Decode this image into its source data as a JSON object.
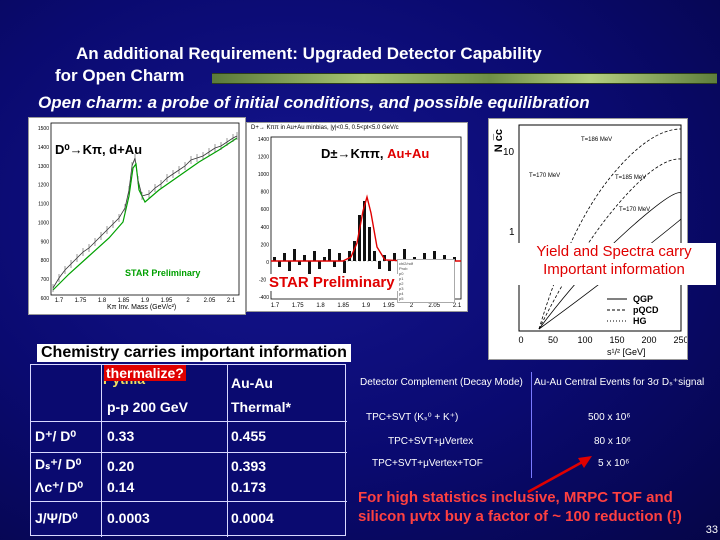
{
  "slide": {
    "title_line1": "An additional Requirement: Upgraded Detector Capability",
    "title_line2": "for Open Charm",
    "subtitle": "Open charm: a probe of  initial conditions, and possible equilibration"
  },
  "panel_dau": {
    "label": "D⁰→Kπ, d+Au",
    "star": "STAR Preliminary",
    "xaxis": "Kπ Inv. Mass (GeV/c²)",
    "yticks": [
      "1500",
      "1400",
      "1300",
      "1200",
      "1100",
      "1000",
      "900",
      "800",
      "700",
      "600"
    ],
    "xticks": [
      "1.7",
      "1.75",
      "1.8",
      "1.85",
      "1.9",
      "1.95",
      "2",
      "2.05",
      "2.1"
    ]
  },
  "panel_auau": {
    "header": "D±→ Kππ, Au+Au",
    "label": "D±→Kππ,",
    "label_red": "Au+Au",
    "star": "STAR Preliminary",
    "topline": "D+→ Kππ in Au+Au minbias, |y|<0.5, 0.5<pt<5.0 GeV/c",
    "yticks": [
      "1400",
      "1200",
      "1000",
      "800",
      "600",
      "400",
      "200",
      "0",
      "-200",
      "-400"
    ],
    "xticks": [
      "1.7",
      "1.75",
      "1.8",
      "1.85",
      "1.9",
      "1.95",
      "2",
      "2.05",
      "2.1"
    ]
  },
  "panel_ncc": {
    "yaxis": "N c̅c",
    "xaxis": "s¹/² [GeV]",
    "xticks": [
      "0",
      "50",
      "100",
      "150",
      "200",
      "250"
    ],
    "yticks": [
      "10",
      "1"
    ],
    "curve_labels": [
      "T=186 MeV",
      "T=170 MeV",
      "T=185 MeV",
      "T=170 MeV"
    ],
    "legend": [
      "QGP",
      "pQCD",
      "HG"
    ]
  },
  "annotations": {
    "yield": "Yield and Spectra carry Important information",
    "chemistry": "Chemistry carries important information",
    "thermalize": "thermalize?"
  },
  "ratio_table": {
    "col_heads": [
      "Pythia",
      "p-p 200 GeV",
      "Au-Au",
      "Thermal*"
    ],
    "rows": [
      {
        "label": "D⁺/ D⁰",
        "pp": "0.33",
        "auau": "0.455"
      },
      {
        "label": "Dₛ⁺/ D⁰",
        "pp": "0.20",
        "auau": "0.393"
      },
      {
        "label": "Λc⁺/ D⁰",
        "pp": "0.14",
        "auau": "0.173"
      },
      {
        "label": "J/Ψ/D⁰",
        "pp": "0.0003",
        "auau": "0.0004"
      }
    ]
  },
  "detector_table": {
    "head_left": "Detector Complement (Decay Mode)",
    "head_right": "Au-Au Central Events for 3σ Dₛ⁺signal",
    "rows": [
      {
        "config": "TPC+SVT   (Kₛ⁰ + K⁺)",
        "events": "500 x 10⁶"
      },
      {
        "config": "TPC+SVT+μVertex",
        "events": "80 x 10⁶"
      },
      {
        "config": "TPC+SVT+μVertex+TOF",
        "events": "5 x 10⁶"
      }
    ]
  },
  "bottom_note": "For high statistics inclusive, MRPC TOF and silicon μvtx buy a factor of ~ 100 reduction (!)",
  "page_number": "33",
  "colors": {
    "background": "#0a0a70",
    "accent_red": "#e00000",
    "bar_green": "#9bbd68"
  }
}
